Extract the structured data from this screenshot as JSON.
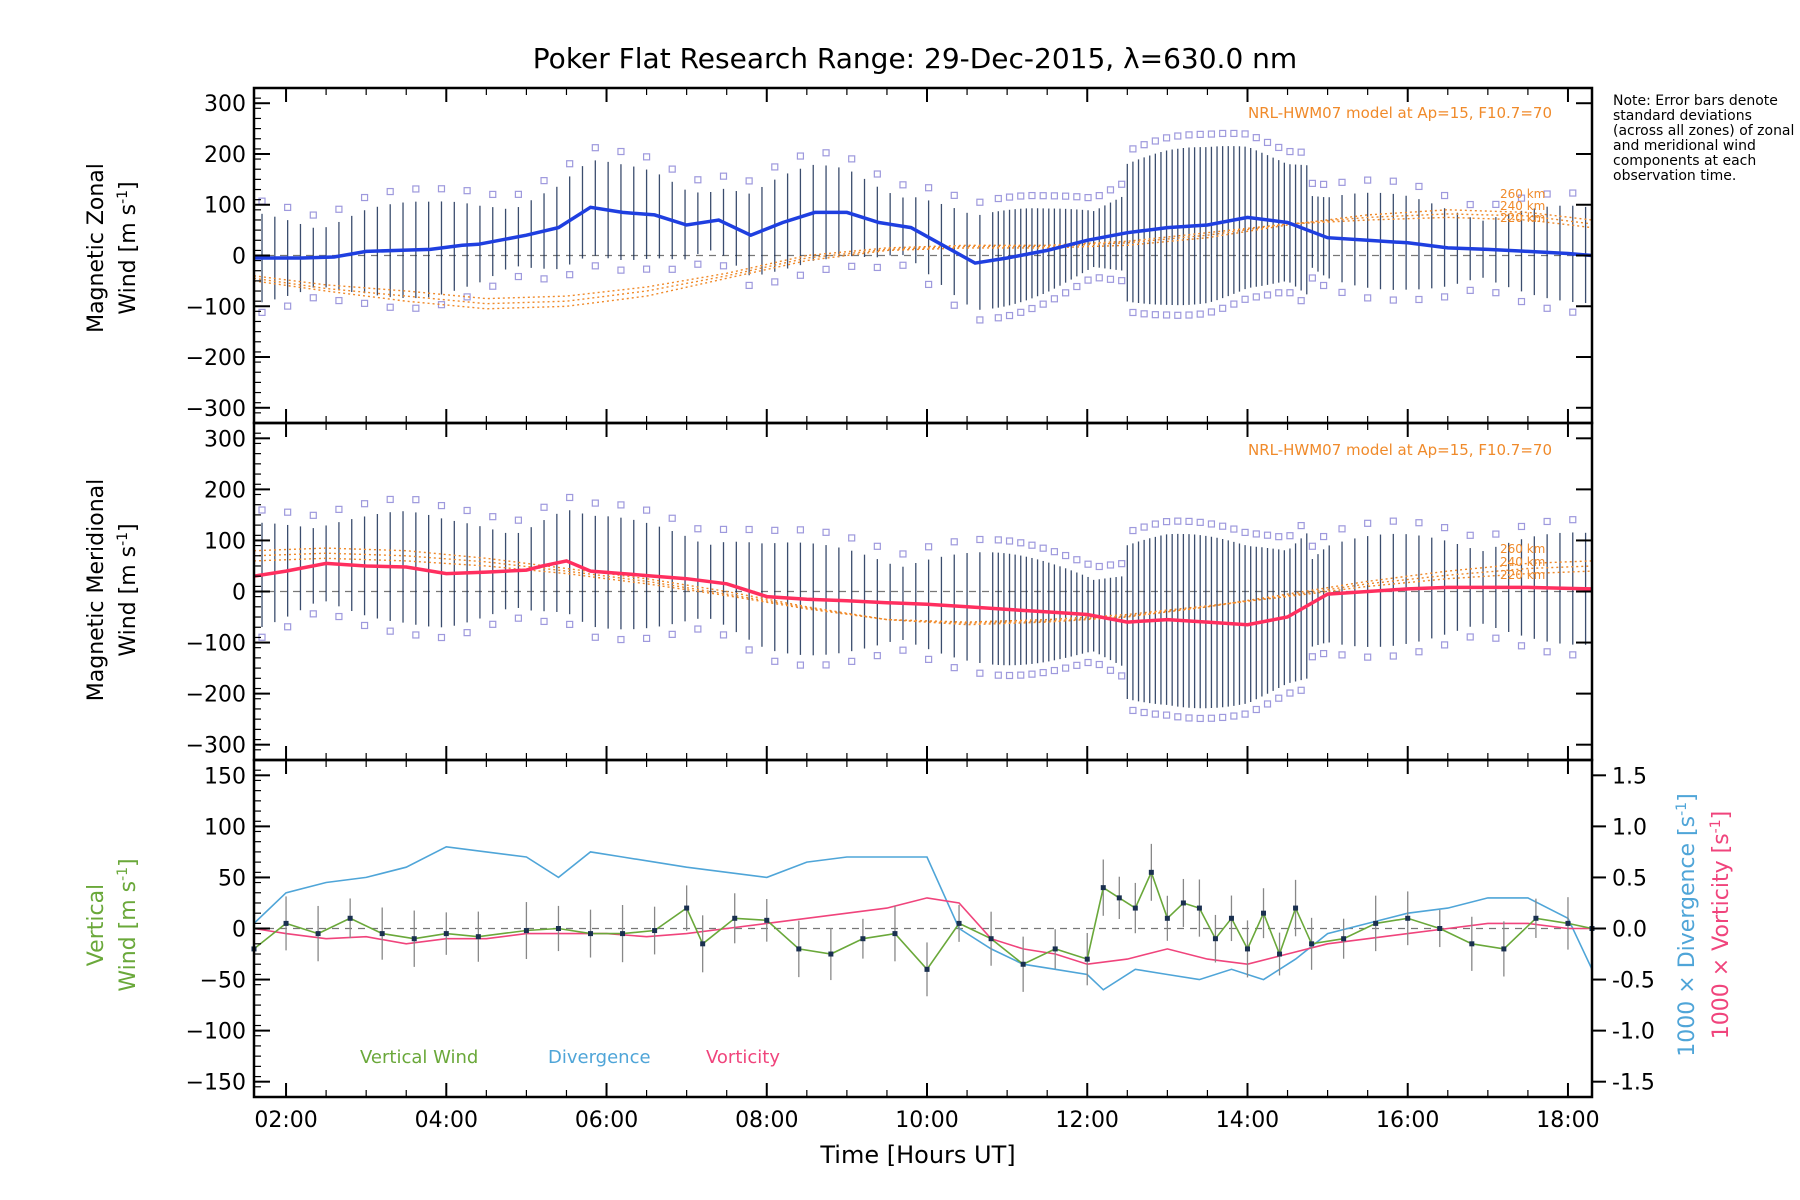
{
  "chart_data": {
    "title": "Poker Flat Research Range: 29-Dec-2015, λ=630.0 nm",
    "note": "Note: Error bars denote standard deviations (across all zones) of zonal and meridional wind components at each observation time.",
    "xlabel": "Time [Hours UT]",
    "x_ticks": [
      "02:00",
      "04:00",
      "06:00",
      "08:00",
      "10:00",
      "12:00",
      "14:00",
      "16:00",
      "18:00"
    ],
    "xlim": [
      1.6,
      18.3
    ],
    "model_label": "NRL-HWM07 model at Ap=15, F10.7=70",
    "model_altitudes": [
      "260 km",
      "240 km",
      "220 km"
    ],
    "colors": {
      "zonal": "#1f3fe0",
      "meridional": "#ff2f5f",
      "model": "#f08a2a",
      "scatter": "#9e99dd",
      "errorbar": "#1a2f55",
      "vertical": "#6aa83a",
      "divergence": "#4fa5d8",
      "vorticity": "#f0447c"
    },
    "panels": [
      {
        "type": "line",
        "ylabel_line1": "Magnetic Zonal",
        "ylabel_line2": "Wind [m s",
        "ylim": [
          -330,
          330
        ],
        "y_ticks": [
          -300,
          -200,
          -100,
          0,
          100,
          200,
          300
        ],
        "series": [
          {
            "x": [
              1.6,
              2.2,
              2.6,
              3.0,
              3.4,
              3.8,
              4.2,
              4.4,
              5.0,
              5.4,
              5.8,
              6.2,
              6.6,
              7.0,
              7.4,
              7.8,
              8.2,
              8.6,
              9.0,
              9.4,
              9.8,
              10.2,
              10.6,
              11.0,
              11.5,
              12.0,
              12.5,
              13.0,
              13.5,
              14.0,
              14.5,
              15.0,
              15.5,
              16.0,
              16.5,
              17.0,
              17.5,
              18.0,
              18.3
            ],
            "y": [
              -5,
              -5,
              -3,
              8,
              10,
              12,
              20,
              22,
              40,
              55,
              95,
              85,
              80,
              60,
              70,
              40,
              65,
              85,
              85,
              65,
              55,
              20,
              -15,
              -5,
              10,
              30,
              45,
              55,
              60,
              75,
              65,
              35,
              30,
              25,
              15,
              12,
              8,
              4,
              0
            ]
          }
        ],
        "model": [
          {
            "x": [
              1.6,
              2.5,
              3.5,
              4.5,
              5.5,
              6.5,
              7.5,
              8.5,
              9.5,
              10.5,
              11.5,
              12.5,
              13.5,
              14.5,
              15.5,
              16.5,
              17.5,
              18.3
            ],
            "y": [
              -50,
              -70,
              -90,
              -105,
              -100,
              -80,
              -45,
              -10,
              10,
              15,
              15,
              20,
              35,
              60,
              80,
              90,
              85,
              70
            ]
          },
          {
            "x": [
              1.6,
              2.5,
              3.5,
              4.5,
              5.5,
              6.5,
              7.5,
              8.5,
              9.5,
              10.5,
              11.5,
              12.5,
              13.5,
              14.5,
              15.5,
              16.5,
              17.5,
              18.3
            ],
            "y": [
              -45,
              -65,
              -80,
              -95,
              -90,
              -70,
              -40,
              -5,
              12,
              18,
              18,
              25,
              40,
              62,
              75,
              82,
              78,
              62
            ]
          },
          {
            "x": [
              1.6,
              2.5,
              3.5,
              4.5,
              5.5,
              6.5,
              7.5,
              8.5,
              9.5,
              10.5,
              11.5,
              12.5,
              13.5,
              14.5,
              15.5,
              16.5,
              17.5,
              18.3
            ],
            "y": [
              -40,
              -58,
              -70,
              -85,
              -80,
              -62,
              -35,
              0,
              15,
              20,
              20,
              28,
              45,
              62,
              70,
              75,
              70,
              55
            ]
          }
        ]
      },
      {
        "type": "line",
        "ylabel_line1": "Magnetic Meridional",
        "ylabel_line2": "Wind [m s",
        "ylim": [
          -330,
          330
        ],
        "y_ticks": [
          -300,
          -200,
          -100,
          0,
          100,
          200,
          300
        ],
        "series": [
          {
            "x": [
              1.6,
              2.0,
              2.5,
              3.0,
              3.5,
              4.0,
              4.5,
              5.0,
              5.2,
              5.5,
              5.8,
              6.2,
              6.6,
              7.0,
              7.5,
              8.0,
              8.5,
              9.0,
              9.5,
              10.0,
              10.5,
              11.0,
              11.5,
              12.0,
              12.5,
              13.0,
              13.5,
              14.0,
              14.5,
              15.0,
              15.5,
              16.0,
              16.5,
              17.0,
              17.5,
              18.0,
              18.3
            ],
            "y": [
              30,
              40,
              55,
              50,
              48,
              35,
              38,
              42,
              50,
              60,
              40,
              35,
              30,
              25,
              15,
              -10,
              -15,
              -18,
              -22,
              -25,
              -30,
              -35,
              -40,
              -45,
              -60,
              -55,
              -60,
              -65,
              -50,
              -5,
              0,
              5,
              8,
              8,
              8,
              6,
              5
            ]
          }
        ],
        "model": [
          {
            "x": [
              1.6,
              2.5,
              3.5,
              4.5,
              5.5,
              6.5,
              7.5,
              8.5,
              9.5,
              10.5,
              11.5,
              12.5,
              13.5,
              14.5,
              15.5,
              16.5,
              17.5,
              18.3
            ],
            "y": [
              80,
              85,
              80,
              65,
              45,
              25,
              0,
              -30,
              -55,
              -65,
              -60,
              -50,
              -30,
              -5,
              20,
              40,
              55,
              60
            ]
          },
          {
            "x": [
              1.6,
              2.5,
              3.5,
              4.5,
              5.5,
              6.5,
              7.5,
              8.5,
              9.5,
              10.5,
              11.5,
              12.5,
              13.5,
              14.5,
              15.5,
              16.5,
              17.5,
              18.3
            ],
            "y": [
              70,
              75,
              70,
              58,
              40,
              20,
              -5,
              -32,
              -55,
              -62,
              -58,
              -48,
              -30,
              -8,
              15,
              32,
              45,
              50
            ]
          },
          {
            "x": [
              1.6,
              2.5,
              3.5,
              4.5,
              5.5,
              6.5,
              7.5,
              8.5,
              9.5,
              10.5,
              11.5,
              12.5,
              13.5,
              14.5,
              15.5,
              16.5,
              17.5,
              18.3
            ],
            "y": [
              60,
              65,
              60,
              50,
              35,
              15,
              -8,
              -34,
              -55,
              -60,
              -55,
              -45,
              -28,
              -10,
              10,
              25,
              35,
              40
            ]
          }
        ]
      },
      {
        "type": "line",
        "ylabel_left_a": "Vertical",
        "ylabel_left_b": "Wind [m s",
        "ylabel_right_a": "1000 × Divergence [s",
        "ylabel_right_b": "1000 × Vorticity [s",
        "ylim": [
          -165,
          165
        ],
        "y_ticks": [
          -150,
          -100,
          -50,
          0,
          50,
          100,
          150
        ],
        "y2lim": [
          -1.65,
          1.65
        ],
        "y2_ticks": [
          "-1.5",
          "-1.0",
          "-0.5",
          "0.0",
          "0.5",
          "1.0",
          "1.5"
        ],
        "legend": [
          "Vertical Wind",
          "Divergence",
          "Vorticity"
        ],
        "series": [
          {
            "name": "Vertical Wind",
            "x": [
              1.6,
              2.0,
              2.4,
              2.8,
              3.2,
              3.6,
              4.0,
              4.4,
              5.0,
              5.4,
              5.8,
              6.2,
              6.6,
              7.0,
              7.2,
              7.6,
              8.0,
              8.4,
              8.8,
              9.2,
              9.6,
              10.0,
              10.4,
              10.8,
              11.2,
              11.6,
              12.0,
              12.2,
              12.4,
              12.6,
              12.8,
              13.0,
              13.2,
              13.4,
              13.6,
              13.8,
              14.0,
              14.2,
              14.4,
              14.6,
              14.8,
              15.2,
              15.6,
              16.0,
              16.4,
              16.8,
              17.2,
              17.6,
              18.0,
              18.3
            ],
            "y": [
              -20,
              5,
              -5,
              10,
              -5,
              -10,
              -5,
              -8,
              -2,
              0,
              -5,
              -5,
              -2,
              20,
              -15,
              10,
              8,
              -20,
              -25,
              -10,
              -5,
              -40,
              5,
              -10,
              -35,
              -20,
              -30,
              40,
              30,
              20,
              55,
              10,
              25,
              20,
              -10,
              10,
              -20,
              15,
              -25,
              20,
              -15,
              -10,
              5,
              10,
              0,
              -15,
              -20,
              10,
              5,
              0
            ]
          },
          {
            "name": "Divergence",
            "x": [
              1.6,
              2.0,
              2.5,
              3.0,
              3.5,
              4.0,
              4.5,
              5.0,
              5.4,
              5.8,
              6.2,
              6.6,
              7.0,
              7.5,
              8.0,
              8.5,
              9.0,
              9.5,
              10.0,
              10.4,
              10.8,
              11.2,
              11.6,
              12.0,
              12.2,
              12.6,
              13.0,
              13.4,
              13.8,
              14.2,
              14.6,
              15.0,
              15.5,
              16.0,
              16.5,
              17.0,
              17.5,
              18.0,
              18.3
            ],
            "y": [
              0.05,
              0.35,
              0.45,
              0.5,
              0.6,
              0.8,
              0.75,
              0.7,
              0.5,
              0.75,
              0.7,
              0.65,
              0.6,
              0.55,
              0.5,
              0.65,
              0.7,
              0.7,
              0.7,
              0.0,
              -0.2,
              -0.35,
              -0.4,
              -0.45,
              -0.6,
              -0.4,
              -0.45,
              -0.5,
              -0.4,
              -0.5,
              -0.3,
              -0.05,
              0.05,
              0.15,
              0.2,
              0.3,
              0.3,
              0.1,
              -0.4
            ]
          },
          {
            "name": "Vorticity",
            "x": [
              1.6,
              2.0,
              2.5,
              3.0,
              3.5,
              4.0,
              4.5,
              5.0,
              5.5,
              6.0,
              6.5,
              7.0,
              7.5,
              8.0,
              8.5,
              9.0,
              9.5,
              10.0,
              10.4,
              10.8,
              11.2,
              11.6,
              12.0,
              12.5,
              13.0,
              13.5,
              14.0,
              14.5,
              15.0,
              15.5,
              16.0,
              16.5,
              17.0,
              17.5,
              18.0,
              18.3
            ],
            "y": [
              0.0,
              -0.05,
              -0.1,
              -0.08,
              -0.15,
              -0.1,
              -0.1,
              -0.05,
              -0.05,
              -0.05,
              -0.08,
              -0.05,
              0.0,
              0.05,
              0.1,
              0.15,
              0.2,
              0.3,
              0.25,
              -0.1,
              -0.2,
              -0.25,
              -0.35,
              -0.3,
              -0.2,
              -0.3,
              -0.35,
              -0.25,
              -0.15,
              -0.1,
              -0.05,
              0.0,
              0.05,
              0.05,
              0.0,
              0.0
            ]
          }
        ]
      }
    ]
  }
}
